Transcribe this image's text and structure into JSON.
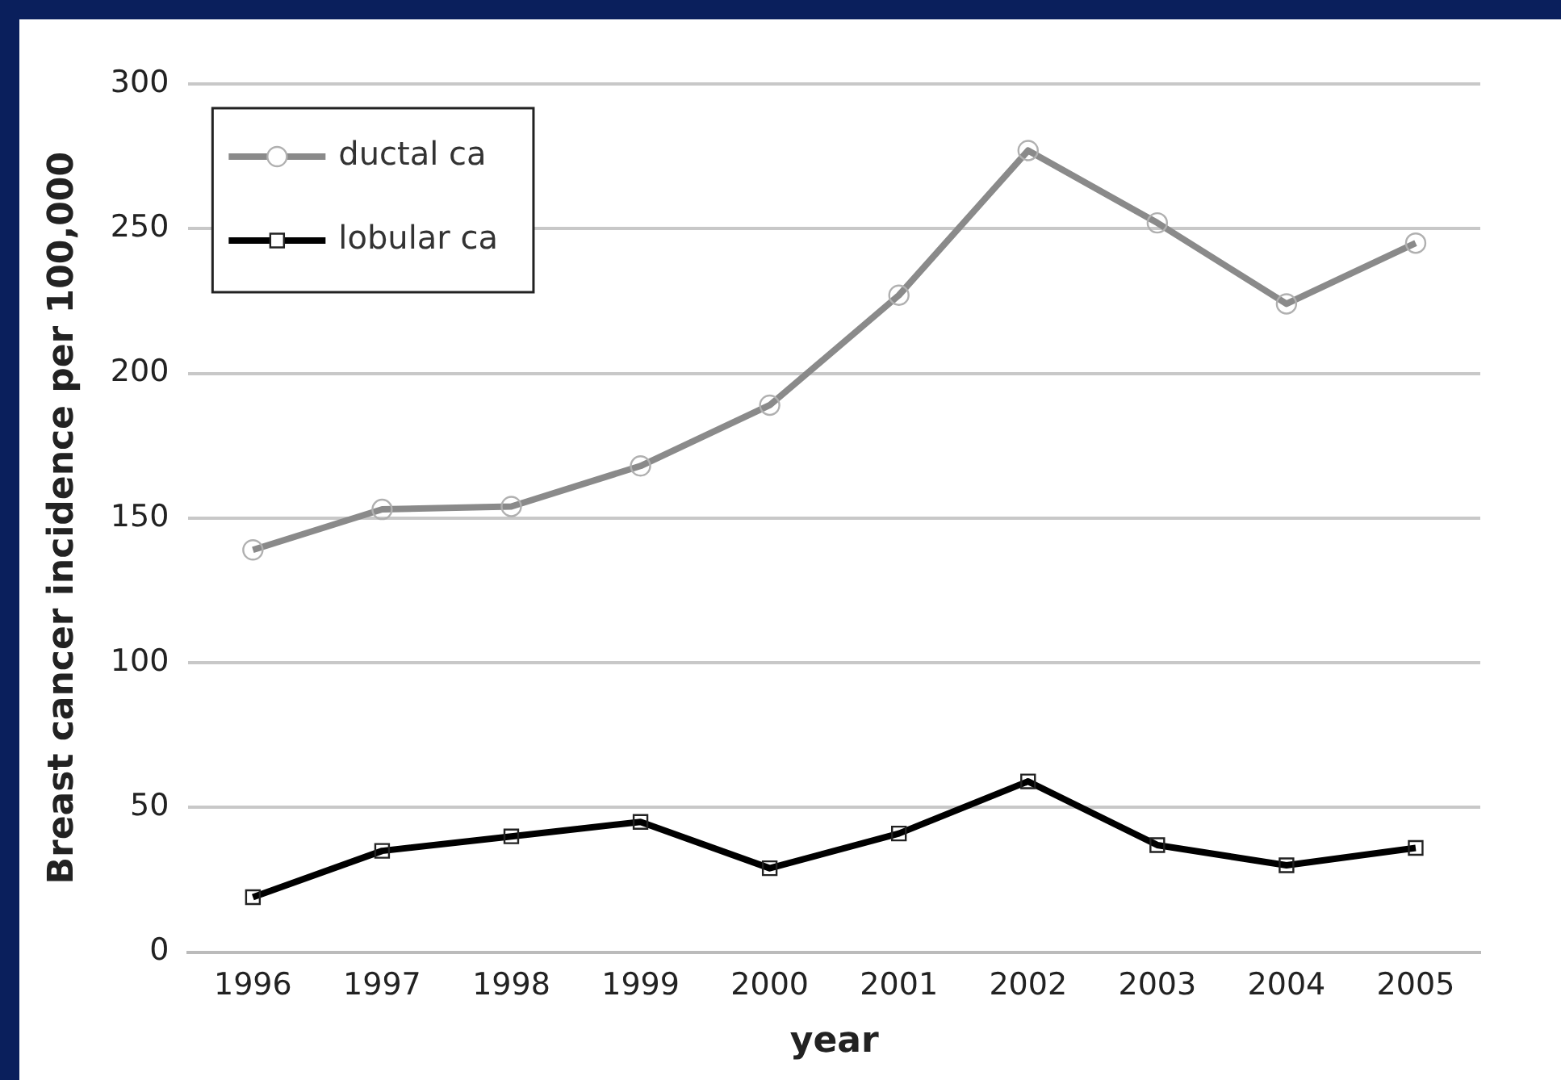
{
  "chart_data": {
    "type": "line",
    "xlabel": "year",
    "ylabel": "Breast cancer incidence per 100,000",
    "categories": [
      "1996",
      "1997",
      "1998",
      "1999",
      "2000",
      "2001",
      "2002",
      "2003",
      "2004",
      "2005"
    ],
    "series": [
      {
        "name": "ductal ca",
        "color": "#8a8a8a",
        "marker": "circle",
        "values": [
          139,
          153,
          154,
          168,
          189,
          227,
          277,
          252,
          224,
          245
        ]
      },
      {
        "name": "lobular ca",
        "color": "#000000",
        "marker": "square",
        "values": [
          19,
          35,
          40,
          45,
          29,
          41,
          59,
          37,
          30,
          36
        ]
      }
    ],
    "ylim": [
      0,
      300
    ],
    "yticks": [
      0,
      50,
      100,
      150,
      200,
      250,
      300
    ],
    "grid": "y",
    "legend": "top left"
  }
}
